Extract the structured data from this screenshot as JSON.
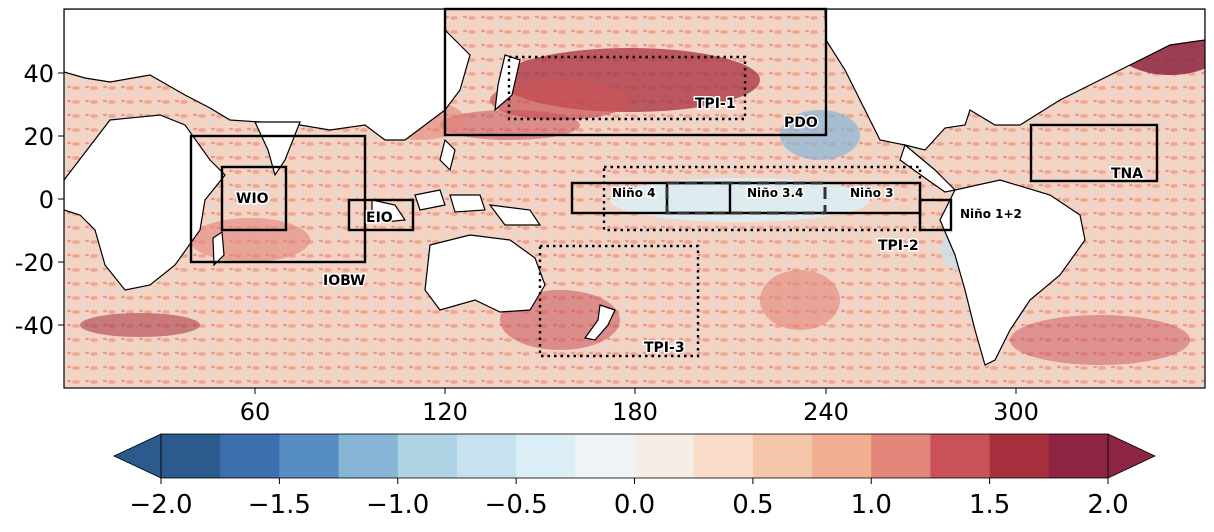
{
  "map": {
    "x_ticks": [
      "60",
      "120",
      "180",
      "240",
      "300"
    ],
    "y_ticks": [
      "40",
      "20",
      "0",
      "-20",
      "-40"
    ],
    "colorbar_ticks": [
      "−2.0",
      "−1.5",
      "−1.0",
      "−0.5",
      "0.0",
      "0.5",
      "1.0",
      "1.5",
      "2.0"
    ],
    "colors": [
      "#2b5b8c",
      "#3b6fae",
      "#568ec3",
      "#86b5d5",
      "#aed3e5",
      "#c6e2ee",
      "#dbeef5",
      "#eef4f6",
      "#f7ede7",
      "#f9ddc9",
      "#f6c6ab",
      "#f1af92",
      "#e3867a",
      "#c9525a",
      "#a82f3e",
      "#8c2542"
    ],
    "regions": [
      {
        "label": "WIO",
        "style": "solid"
      },
      {
        "label": "EIO",
        "style": "solid"
      },
      {
        "label": "IOBW",
        "style": "solid"
      },
      {
        "label": "PDO",
        "style": "solid"
      },
      {
        "label": "TPI-1",
        "style": "dotted"
      },
      {
        "label": "TPI-2",
        "style": "dotted"
      },
      {
        "label": "TPI-3",
        "style": "dotted"
      },
      {
        "label": "Niño 4",
        "style": "solid"
      },
      {
        "label": "Niño 3.4",
        "style": "dashed"
      },
      {
        "label": "Niño 3",
        "style": "solid"
      },
      {
        "label": "Niño 1+2",
        "style": "solid"
      },
      {
        "label": "TNA",
        "style": "solid"
      }
    ]
  }
}
